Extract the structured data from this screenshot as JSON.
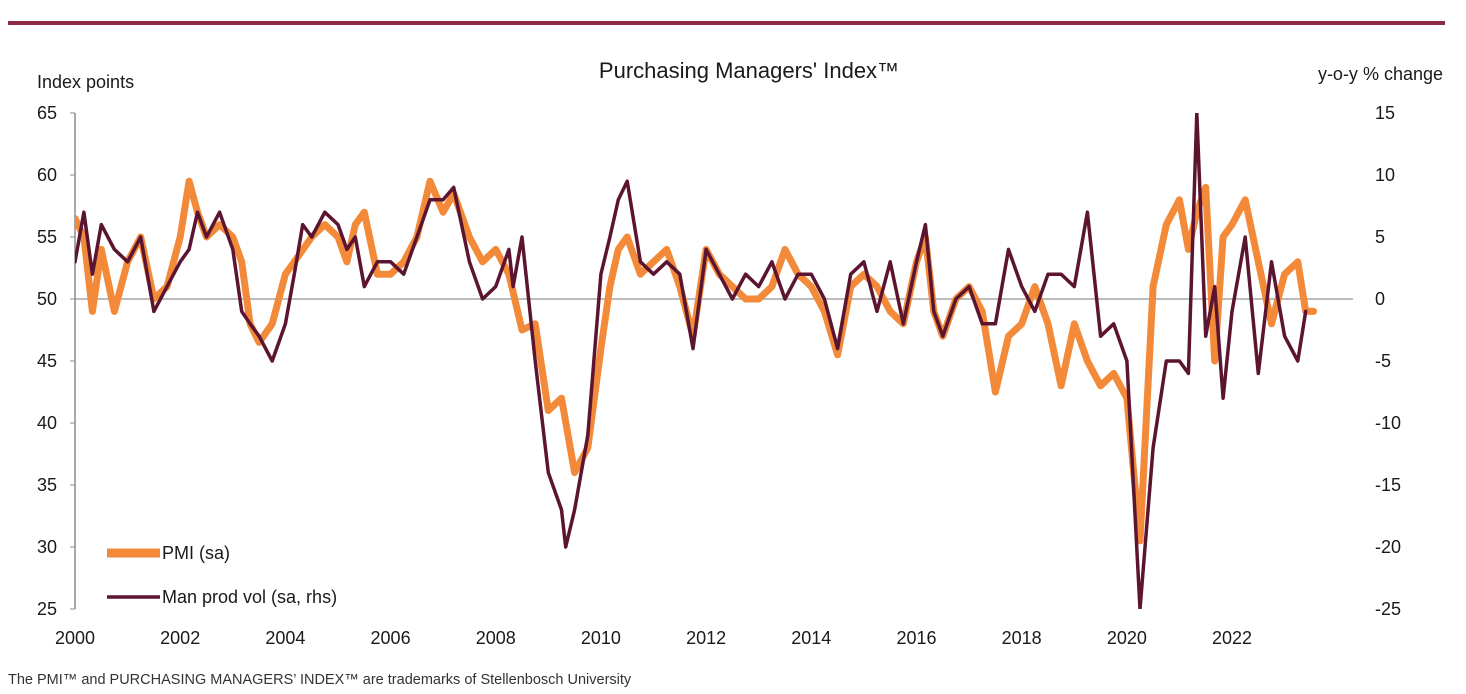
{
  "footer_note": "The PMI™ and PURCHASING MANAGERS’ INDEX™ are trademarks of Stellenbosch University",
  "chart_data": {
    "type": "line",
    "title": "Purchasing Managers' Index™",
    "ylabel_left": "Index points",
    "ylabel_right": "y-o-y % change",
    "ylim_left": [
      25,
      65
    ],
    "ylim_right": [
      -25,
      15
    ],
    "yticks_left": [
      "65",
      "60",
      "55",
      "50",
      "45",
      "40",
      "35",
      "30",
      "25"
    ],
    "yticks_right": [
      "15",
      "10",
      "5",
      "0",
      "-5",
      "-10",
      "-15",
      "-20",
      "-25"
    ],
    "xlim": [
      2000,
      2024.3
    ],
    "xticks": [
      "2000",
      "2002",
      "2004",
      "2006",
      "2008",
      "2010",
      "2012",
      "2014",
      "2016",
      "2018",
      "2020",
      "2022"
    ],
    "reference_line": {
      "axis": "left",
      "value": 50
    },
    "legend_position": "bottom-left",
    "colors": {
      "accent": "#8b2a43",
      "pmi": "#f28a3a",
      "prod": "#5c1530",
      "axis": "#8c8c8c",
      "zero_line": "#a6a6a6"
    },
    "series": [
      {
        "name": "PMI (sa)",
        "axis": "left",
        "points": [
          [
            2000.0,
            56.5
          ],
          [
            2000.17,
            55
          ],
          [
            2000.33,
            49
          ],
          [
            2000.5,
            54
          ],
          [
            2000.75,
            49
          ],
          [
            2001.0,
            53
          ],
          [
            2001.25,
            55
          ],
          [
            2001.5,
            50
          ],
          [
            2001.75,
            51
          ],
          [
            2002.0,
            55
          ],
          [
            2002.17,
            59.5
          ],
          [
            2002.33,
            57
          ],
          [
            2002.5,
            55
          ],
          [
            2002.75,
            56
          ],
          [
            2003.0,
            55
          ],
          [
            2003.17,
            53
          ],
          [
            2003.33,
            48
          ],
          [
            2003.5,
            46.5
          ],
          [
            2003.75,
            48
          ],
          [
            2004.0,
            52
          ],
          [
            2004.17,
            53
          ],
          [
            2004.5,
            55
          ],
          [
            2004.75,
            56
          ],
          [
            2005.0,
            55
          ],
          [
            2005.17,
            53
          ],
          [
            2005.33,
            56
          ],
          [
            2005.5,
            57
          ],
          [
            2005.75,
            52
          ],
          [
            2006.0,
            52
          ],
          [
            2006.25,
            53
          ],
          [
            2006.5,
            55
          ],
          [
            2006.75,
            59.5
          ],
          [
            2007.0,
            57
          ],
          [
            2007.2,
            58.5
          ],
          [
            2007.5,
            55
          ],
          [
            2007.75,
            53
          ],
          [
            2008.0,
            54
          ],
          [
            2008.25,
            52
          ],
          [
            2008.5,
            47.5
          ],
          [
            2008.75,
            48
          ],
          [
            2009.0,
            41
          ],
          [
            2009.25,
            42
          ],
          [
            2009.5,
            36
          ],
          [
            2009.75,
            38
          ],
          [
            2010.0,
            46
          ],
          [
            2010.17,
            51
          ],
          [
            2010.33,
            54
          ],
          [
            2010.5,
            55
          ],
          [
            2010.75,
            52
          ],
          [
            2011.0,
            53
          ],
          [
            2011.25,
            54
          ],
          [
            2011.5,
            51
          ],
          [
            2011.75,
            47
          ],
          [
            2012.0,
            54
          ],
          [
            2012.25,
            52
          ],
          [
            2012.5,
            51
          ],
          [
            2012.75,
            50
          ],
          [
            2013.0,
            50
          ],
          [
            2013.25,
            51
          ],
          [
            2013.5,
            54
          ],
          [
            2013.75,
            52
          ],
          [
            2014.0,
            51
          ],
          [
            2014.25,
            49
          ],
          [
            2014.5,
            45.5
          ],
          [
            2014.75,
            51
          ],
          [
            2015.0,
            52
          ],
          [
            2015.25,
            51
          ],
          [
            2015.5,
            49
          ],
          [
            2015.75,
            48
          ],
          [
            2016.0,
            53
          ],
          [
            2016.17,
            55
          ],
          [
            2016.33,
            49
          ],
          [
            2016.5,
            47
          ],
          [
            2016.75,
            50
          ],
          [
            2017.0,
            51
          ],
          [
            2017.25,
            49
          ],
          [
            2017.5,
            42.5
          ],
          [
            2017.75,
            47
          ],
          [
            2018.0,
            48
          ],
          [
            2018.25,
            51
          ],
          [
            2018.5,
            48
          ],
          [
            2018.75,
            43
          ],
          [
            2019.0,
            48
          ],
          [
            2019.25,
            45
          ],
          [
            2019.5,
            43
          ],
          [
            2019.75,
            44
          ],
          [
            2020.0,
            42
          ],
          [
            2020.25,
            30.5
          ],
          [
            2020.5,
            51
          ],
          [
            2020.75,
            56
          ],
          [
            2021.0,
            58
          ],
          [
            2021.17,
            54
          ],
          [
            2021.33,
            57
          ],
          [
            2021.5,
            59
          ],
          [
            2021.67,
            45
          ],
          [
            2021.83,
            55
          ],
          [
            2022.0,
            56
          ],
          [
            2022.25,
            58
          ],
          [
            2022.5,
            53
          ],
          [
            2022.75,
            48
          ],
          [
            2023.0,
            52
          ],
          [
            2023.25,
            53
          ],
          [
            2023.4,
            49
          ],
          [
            2023.55,
            49
          ]
        ]
      },
      {
        "name": "Man prod vol (sa, rhs)",
        "axis": "right",
        "points": [
          [
            2000.0,
            3
          ],
          [
            2000.17,
            7
          ],
          [
            2000.33,
            2
          ],
          [
            2000.5,
            6
          ],
          [
            2000.75,
            4
          ],
          [
            2001.0,
            3
          ],
          [
            2001.25,
            5
          ],
          [
            2001.5,
            -1
          ],
          [
            2001.75,
            1
          ],
          [
            2002.0,
            3
          ],
          [
            2002.17,
            4
          ],
          [
            2002.33,
            7
          ],
          [
            2002.5,
            5
          ],
          [
            2002.75,
            7
          ],
          [
            2003.0,
            4
          ],
          [
            2003.17,
            -1
          ],
          [
            2003.33,
            -2
          ],
          [
            2003.5,
            -3
          ],
          [
            2003.75,
            -5
          ],
          [
            2004.0,
            -2
          ],
          [
            2004.17,
            2
          ],
          [
            2004.33,
            6
          ],
          [
            2004.5,
            5
          ],
          [
            2004.75,
            7
          ],
          [
            2005.0,
            6
          ],
          [
            2005.17,
            4
          ],
          [
            2005.33,
            5
          ],
          [
            2005.5,
            1
          ],
          [
            2005.75,
            3
          ],
          [
            2006.0,
            3
          ],
          [
            2006.25,
            2
          ],
          [
            2006.5,
            5
          ],
          [
            2006.75,
            8
          ],
          [
            2007.0,
            8
          ],
          [
            2007.2,
            9
          ],
          [
            2007.5,
            3
          ],
          [
            2007.75,
            0
          ],
          [
            2008.0,
            1
          ],
          [
            2008.25,
            4
          ],
          [
            2008.33,
            1
          ],
          [
            2008.5,
            5
          ],
          [
            2008.75,
            -5
          ],
          [
            2009.0,
            -14
          ],
          [
            2009.25,
            -17
          ],
          [
            2009.33,
            -20
          ],
          [
            2009.5,
            -17
          ],
          [
            2009.75,
            -11
          ],
          [
            2010.0,
            2
          ],
          [
            2010.17,
            5
          ],
          [
            2010.33,
            8
          ],
          [
            2010.5,
            9.5
          ],
          [
            2010.75,
            3
          ],
          [
            2011.0,
            2
          ],
          [
            2011.25,
            3
          ],
          [
            2011.5,
            2
          ],
          [
            2011.75,
            -4
          ],
          [
            2012.0,
            4
          ],
          [
            2012.25,
            2
          ],
          [
            2012.5,
            0
          ],
          [
            2012.75,
            2
          ],
          [
            2013.0,
            1
          ],
          [
            2013.25,
            3
          ],
          [
            2013.5,
            0
          ],
          [
            2013.75,
            2
          ],
          [
            2014.0,
            2
          ],
          [
            2014.25,
            0
          ],
          [
            2014.5,
            -4
          ],
          [
            2014.75,
            2
          ],
          [
            2015.0,
            3
          ],
          [
            2015.25,
            -1
          ],
          [
            2015.5,
            3
          ],
          [
            2015.75,
            -2
          ],
          [
            2016.0,
            3
          ],
          [
            2016.17,
            6
          ],
          [
            2016.33,
            -1
          ],
          [
            2016.5,
            -3
          ],
          [
            2016.75,
            0
          ],
          [
            2017.0,
            1
          ],
          [
            2017.25,
            -2
          ],
          [
            2017.5,
            -2
          ],
          [
            2017.75,
            4
          ],
          [
            2018.0,
            1
          ],
          [
            2018.25,
            -1
          ],
          [
            2018.5,
            2
          ],
          [
            2018.75,
            2
          ],
          [
            2019.0,
            1
          ],
          [
            2019.25,
            7
          ],
          [
            2019.5,
            -3
          ],
          [
            2019.75,
            -2
          ],
          [
            2020.0,
            -5
          ],
          [
            2020.25,
            -25
          ],
          [
            2020.5,
            -12
          ],
          [
            2020.75,
            -5
          ],
          [
            2021.0,
            -5
          ],
          [
            2021.17,
            -6
          ],
          [
            2021.33,
            15
          ],
          [
            2021.5,
            -3
          ],
          [
            2021.67,
            1
          ],
          [
            2021.83,
            -8
          ],
          [
            2022.0,
            -1
          ],
          [
            2022.25,
            5
          ],
          [
            2022.5,
            -6
          ],
          [
            2022.75,
            3
          ],
          [
            2023.0,
            -3
          ],
          [
            2023.25,
            -5
          ],
          [
            2023.4,
            -1
          ]
        ]
      }
    ]
  }
}
